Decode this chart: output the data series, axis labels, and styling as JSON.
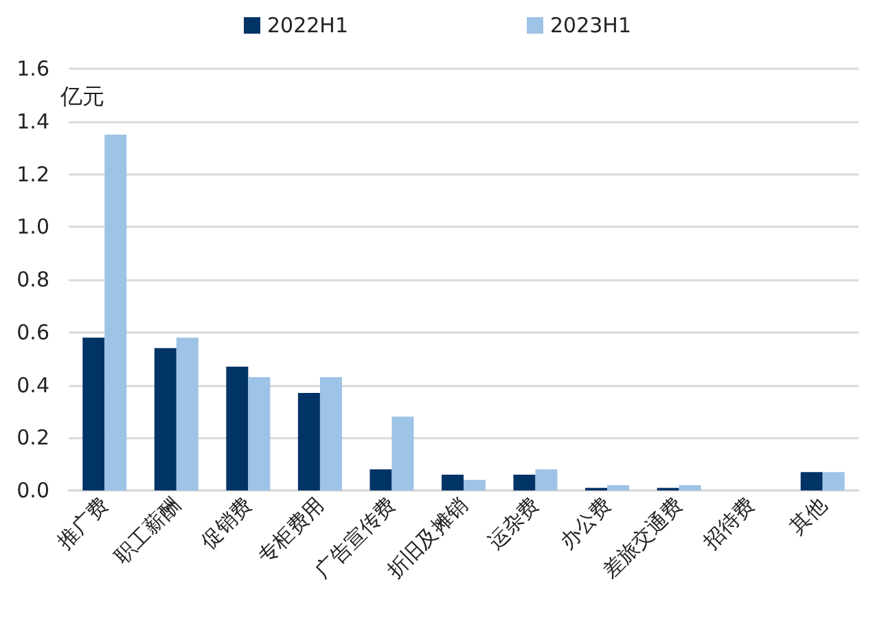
{
  "chart_data": {
    "type": "bar",
    "ylabel": "亿元",
    "categories": [
      "推广费",
      "职工薪酬",
      "促销费",
      "专柜费用",
      "广告宣传费",
      "折旧及摊销",
      "运杂费",
      "办公费",
      "差旅交通费",
      "招待费",
      "其他"
    ],
    "series": [
      {
        "name": "2022H1",
        "color": "#003366",
        "values": [
          0.58,
          0.54,
          0.47,
          0.37,
          0.08,
          0.06,
          0.06,
          0.01,
          0.01,
          0,
          0.07
        ]
      },
      {
        "name": "2023H1",
        "color": "#9dc3e6",
        "values": [
          1.35,
          0.58,
          0.43,
          0.43,
          0.28,
          0.04,
          0.08,
          0.02,
          0.02,
          0,
          0.07
        ]
      }
    ],
    "ylim": [
      0,
      1.6
    ],
    "yticks": [
      {
        "value": 0,
        "label": "0.0"
      },
      {
        "value": 0.2,
        "label": "0.2"
      },
      {
        "value": 0.4,
        "label": "0.4"
      },
      {
        "value": 0.6,
        "label": "0.6"
      },
      {
        "value": 0.8,
        "label": "0.8"
      },
      {
        "value": 1,
        "label": "1.0"
      },
      {
        "value": 1.2,
        "label": "1.2"
      },
      {
        "value": 1.4,
        "label": "1.4"
      },
      {
        "value": 1.6,
        "label": "1.6"
      }
    ],
    "grid": "y",
    "legend": "top"
  }
}
